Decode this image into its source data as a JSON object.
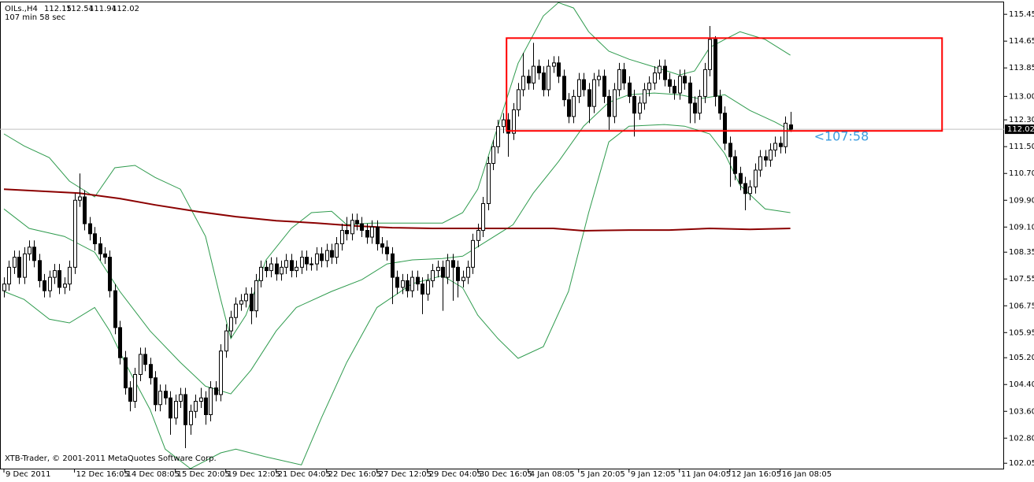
{
  "chart_data": {
    "type": "candlestick",
    "symbol": "OILs.,H4",
    "timer": "107 min 58 sec",
    "timer_label": "<107:58",
    "copyright": "XTB-Trader, © 2001-2011 MetaQuotes Software Corp.",
    "candle_up_color": "#ffffff",
    "candle_down_color": "#000000",
    "price_line_color": "#c0c0c0",
    "timer_color": "#3c9ee0",
    "xlim": [
      0,
      198.4
    ],
    "ylim": [
      101.89,
      115.83
    ],
    "yticks": [
      115.45,
      114.65,
      113.85,
      {
        "value": 113.0,
        "label": "113.00"
      },
      {
        "value": 112.3,
        "label": "112.30"
      },
      {
        "value": 111.5,
        "label": "111.50"
      },
      {
        "value": 110.7,
        "label": "110.70"
      },
      {
        "value": 109.9,
        "label": "109.90"
      },
      {
        "value": 109.1,
        "label": "109.10"
      },
      108.35,
      107.55,
      106.75,
      105.95,
      {
        "value": 105.2,
        "label": "105.20"
      },
      {
        "value": 104.4,
        "label": "104.40"
      },
      {
        "value": 103.6,
        "label": "103.60"
      },
      {
        "value": 102.8,
        "label": "102.80"
      },
      102.05
    ],
    "xticks": [
      {
        "value": 0,
        "label": "9 Dec 2011"
      },
      {
        "value": 14,
        "label": "12 Dec 16:05"
      },
      {
        "value": 24,
        "label": "14 Dec 08:05"
      },
      {
        "value": 34,
        "label": "15 Dec 20:05"
      },
      {
        "value": 44,
        "label": "19 Dec 12:05"
      },
      {
        "value": 54,
        "label": "21 Dec 04:05"
      },
      {
        "value": 64,
        "label": "22 Dec 16:05"
      },
      {
        "value": 74,
        "label": "27 Dec 12:05"
      },
      {
        "value": 84,
        "label": "29 Dec 04:05"
      },
      {
        "value": 94,
        "label": "30 Dec 16:05"
      },
      {
        "value": 104,
        "label": "4 Jan 08:05"
      },
      {
        "value": 114,
        "label": "5 Jan 20:05"
      },
      {
        "value": 124,
        "label": "9 Jan 12:05"
      },
      {
        "value": 134,
        "label": "11 Jan 04:05"
      },
      {
        "value": 144,
        "label": "12 Jan 16:05"
      },
      {
        "value": 154,
        "label": "16 Jan 08:05"
      }
    ],
    "candles": [
      [
        107.2,
        107.6,
        107.0,
        107.4
      ],
      [
        107.4,
        108.1,
        107.2,
        107.9
      ],
      [
        107.9,
        108.4,
        107.7,
        108.2
      ],
      [
        108.2,
        108.4,
        107.4,
        107.6
      ],
      [
        107.6,
        108.5,
        107.4,
        108.3
      ],
      [
        108.3,
        108.7,
        108.1,
        108.5
      ],
      [
        108.5,
        108.7,
        107.9,
        108.1
      ],
      [
        108.1,
        108.3,
        107.3,
        107.5
      ],
      [
        107.5,
        107.7,
        107.0,
        107.2
      ],
      [
        107.2,
        107.8,
        107.0,
        107.6
      ],
      [
        107.6,
        108.0,
        107.4,
        107.8
      ],
      [
        107.8,
        108.0,
        107.1,
        107.3
      ],
      [
        107.3,
        107.6,
        107.1,
        107.4
      ],
      [
        107.4,
        108.1,
        107.2,
        107.9
      ],
      [
        107.9,
        110.1,
        107.7,
        109.9
      ],
      [
        109.9,
        110.7,
        109.7,
        110.0
      ],
      [
        110.0,
        110.2,
        109.0,
        109.2
      ],
      [
        109.2,
        109.4,
        108.7,
        108.9
      ],
      [
        108.9,
        109.1,
        108.4,
        108.6
      ],
      [
        108.6,
        108.8,
        108.1,
        108.3
      ],
      [
        108.3,
        108.5,
        108.0,
        108.2
      ],
      [
        108.2,
        108.4,
        107.0,
        107.2
      ],
      [
        107.2,
        107.4,
        105.9,
        106.1
      ],
      [
        106.1,
        106.3,
        105.0,
        105.2
      ],
      [
        105.2,
        105.4,
        104.1,
        104.3
      ],
      [
        104.3,
        104.5,
        103.6,
        103.9
      ],
      [
        103.9,
        104.9,
        103.7,
        104.7
      ],
      [
        104.7,
        105.5,
        104.5,
        105.3
      ],
      [
        105.3,
        105.5,
        104.8,
        105.0
      ],
      [
        105.0,
        105.2,
        104.4,
        104.6
      ],
      [
        104.6,
        104.8,
        103.6,
        103.8
      ],
      [
        103.8,
        104.4,
        103.6,
        104.2
      ],
      [
        104.2,
        104.4,
        103.8,
        104.0
      ],
      [
        104.0,
        104.2,
        102.9,
        103.4
      ],
      [
        103.4,
        104.1,
        103.2,
        103.9
      ],
      [
        103.9,
        104.3,
        103.7,
        104.1
      ],
      [
        104.1,
        104.3,
        102.5,
        103.2
      ],
      [
        103.2,
        103.8,
        102.9,
        103.6
      ],
      [
        103.6,
        104.1,
        103.4,
        103.9
      ],
      [
        103.9,
        104.3,
        103.7,
        104.0
      ],
      [
        104.0,
        104.2,
        103.2,
        103.5
      ],
      [
        103.5,
        104.5,
        103.3,
        104.3
      ],
      [
        104.3,
        104.5,
        103.9,
        104.1
      ],
      [
        104.1,
        105.6,
        103.9,
        105.4
      ],
      [
        105.4,
        106.2,
        105.2,
        106.0
      ],
      [
        106.0,
        106.6,
        105.8,
        106.4
      ],
      [
        106.4,
        107.0,
        106.2,
        106.8
      ],
      [
        106.8,
        107.1,
        106.6,
        106.9
      ],
      [
        106.9,
        107.3,
        106.7,
        107.1
      ],
      [
        107.1,
        107.3,
        106.2,
        106.6
      ],
      [
        106.6,
        107.7,
        106.4,
        107.5
      ],
      [
        107.5,
        108.1,
        107.3,
        107.9
      ],
      [
        107.9,
        108.1,
        107.6,
        107.8
      ],
      [
        107.8,
        108.2,
        107.6,
        108.0
      ],
      [
        108.0,
        108.2,
        107.5,
        107.7
      ],
      [
        107.7,
        108.1,
        107.5,
        107.9
      ],
      [
        107.9,
        108.3,
        107.7,
        108.1
      ],
      [
        108.1,
        108.3,
        107.6,
        107.8
      ],
      [
        107.8,
        108.1,
        107.6,
        107.9
      ],
      [
        107.9,
        108.4,
        107.7,
        108.2
      ],
      [
        108.2,
        108.4,
        107.8,
        108.0
      ],
      [
        108.0,
        108.2,
        107.8,
        108.0
      ],
      [
        108.0,
        108.5,
        107.8,
        108.3
      ],
      [
        108.3,
        108.5,
        107.9,
        108.1
      ],
      [
        108.1,
        108.6,
        107.9,
        108.4
      ],
      [
        108.4,
        108.6,
        108.0,
        108.2
      ],
      [
        108.2,
        108.8,
        108.0,
        108.6
      ],
      [
        108.6,
        109.2,
        108.4,
        109.0
      ],
      [
        109.0,
        109.4,
        108.7,
        108.9
      ],
      [
        108.9,
        109.5,
        108.7,
        109.3
      ],
      [
        109.3,
        109.5,
        109.0,
        109.2
      ],
      [
        109.2,
        109.4,
        108.8,
        109.0
      ],
      [
        109.0,
        109.2,
        108.6,
        108.8
      ],
      [
        108.8,
        109.3,
        108.6,
        109.1
      ],
      [
        109.1,
        109.3,
        108.4,
        108.6
      ],
      [
        108.6,
        108.8,
        108.3,
        108.5
      ],
      [
        108.5,
        108.7,
        108.1,
        108.3
      ],
      [
        108.3,
        108.5,
        106.8,
        107.6
      ],
      [
        107.6,
        107.8,
        107.1,
        107.3
      ],
      [
        107.3,
        107.7,
        107.1,
        107.5
      ],
      [
        107.5,
        107.7,
        107.0,
        107.2
      ],
      [
        107.2,
        107.8,
        107.0,
        107.6
      ],
      [
        107.6,
        107.8,
        107.2,
        107.4
      ],
      [
        107.4,
        107.6,
        106.5,
        107.1
      ],
      [
        107.1,
        107.7,
        106.9,
        107.5
      ],
      [
        107.5,
        108.0,
        107.3,
        107.8
      ],
      [
        107.8,
        108.1,
        107.6,
        107.9
      ],
      [
        107.9,
        108.1,
        106.6,
        107.6
      ],
      [
        107.6,
        108.3,
        107.4,
        108.1
      ],
      [
        108.1,
        108.3,
        106.9,
        107.9
      ],
      [
        107.9,
        108.1,
        107.0,
        107.5
      ],
      [
        107.5,
        107.8,
        107.3,
        107.6
      ],
      [
        107.6,
        108.1,
        107.4,
        107.9
      ],
      [
        107.9,
        108.9,
        107.7,
        108.7
      ],
      [
        108.7,
        109.2,
        108.5,
        109.0
      ],
      [
        109.0,
        110.0,
        108.8,
        109.8
      ],
      [
        109.8,
        111.2,
        109.6,
        111.0
      ],
      [
        111.0,
        111.7,
        110.8,
        111.5
      ],
      [
        111.5,
        112.3,
        111.3,
        112.1
      ],
      [
        112.1,
        112.5,
        111.9,
        112.3
      ],
      [
        112.3,
        112.5,
        111.2,
        111.9
      ],
      [
        111.9,
        112.8,
        111.7,
        112.6
      ],
      [
        112.6,
        113.4,
        112.4,
        113.2
      ],
      [
        113.2,
        114.3,
        113.0,
        113.6
      ],
      [
        113.6,
        113.8,
        113.2,
        113.4
      ],
      [
        113.4,
        114.6,
        113.2,
        113.9
      ],
      [
        113.9,
        114.1,
        113.5,
        113.7
      ],
      [
        113.7,
        113.9,
        113.0,
        113.2
      ],
      [
        113.2,
        114.1,
        113.0,
        113.9
      ],
      [
        113.9,
        114.2,
        113.7,
        114.0
      ],
      [
        114.0,
        114.2,
        113.4,
        113.6
      ],
      [
        113.6,
        113.8,
        112.7,
        112.9
      ],
      [
        112.9,
        113.1,
        112.2,
        112.4
      ],
      [
        112.4,
        113.2,
        112.2,
        113.0
      ],
      [
        113.0,
        113.7,
        112.8,
        113.5
      ],
      [
        113.5,
        113.7,
        113.0,
        113.2
      ],
      [
        113.2,
        113.4,
        112.2,
        112.7
      ],
      [
        112.7,
        113.7,
        112.5,
        113.5
      ],
      [
        113.5,
        113.8,
        113.3,
        113.6
      ],
      [
        113.6,
        113.8,
        112.8,
        113.0
      ],
      [
        113.0,
        113.2,
        112.0,
        112.4
      ],
      [
        112.4,
        113.4,
        112.2,
        113.2
      ],
      [
        113.2,
        114.0,
        113.0,
        113.8
      ],
      [
        113.8,
        114.0,
        113.2,
        113.4
      ],
      [
        113.4,
        113.6,
        112.8,
        113.0
      ],
      [
        113.0,
        113.2,
        111.8,
        112.5
      ],
      [
        112.5,
        113.0,
        112.3,
        112.8
      ],
      [
        112.8,
        113.4,
        112.6,
        113.2
      ],
      [
        113.2,
        113.6,
        113.0,
        113.4
      ],
      [
        113.4,
        113.9,
        113.2,
        113.7
      ],
      [
        113.7,
        114.1,
        113.5,
        113.9
      ],
      [
        113.9,
        114.1,
        113.3,
        113.5
      ],
      [
        113.5,
        113.7,
        113.1,
        113.3
      ],
      [
        113.3,
        113.5,
        112.9,
        113.1
      ],
      [
        113.1,
        113.8,
        112.9,
        113.6
      ],
      [
        113.6,
        113.8,
        113.2,
        113.4
      ],
      [
        113.4,
        113.6,
        112.2,
        112.8
      ],
      [
        112.8,
        113.0,
        112.2,
        112.5
      ],
      [
        112.5,
        113.2,
        112.3,
        113.0
      ],
      [
        113.0,
        114.0,
        112.8,
        113.8
      ],
      [
        113.8,
        115.1,
        113.6,
        114.7
      ],
      [
        114.7,
        114.8,
        112.7,
        113.0
      ],
      [
        113.0,
        113.2,
        112.3,
        112.5
      ],
      [
        112.5,
        112.7,
        111.4,
        111.6
      ],
      [
        111.6,
        111.8,
        110.3,
        111.2
      ],
      [
        111.2,
        111.4,
        110.5,
        110.7
      ],
      [
        110.7,
        110.9,
        110.2,
        110.4
      ],
      [
        110.4,
        110.6,
        109.6,
        110.1
      ],
      [
        110.1,
        110.5,
        109.9,
        110.3
      ],
      [
        110.3,
        111.0,
        110.1,
        110.8
      ],
      [
        110.8,
        111.4,
        110.6,
        111.2
      ],
      [
        111.2,
        111.4,
        110.9,
        111.1
      ],
      [
        111.1,
        111.6,
        110.9,
        111.4
      ],
      [
        111.4,
        111.8,
        111.2,
        111.6
      ],
      [
        111.6,
        111.8,
        111.3,
        111.5
      ],
      [
        111.5,
        112.4,
        111.3,
        112.2
      ],
      [
        112.15,
        112.54,
        111.94,
        112.02
      ]
    ],
    "lines": [
      {
        "color": "#2f9b4e",
        "x": [
          0,
          4,
          9,
          13,
          18,
          22,
          26,
          30,
          35,
          40,
          43,
          45,
          48,
          52,
          57,
          61,
          65,
          68,
          73,
          79,
          87,
          91,
          94,
          98,
          102,
          107,
          110,
          113,
          116,
          120,
          124,
          129,
          134,
          137,
          140,
          143,
          146,
          151,
          156
        ],
        "values": [
          111.88,
          111.52,
          111.17,
          110.47,
          110.0,
          110.87,
          110.94,
          110.58,
          110.23,
          108.82,
          106.94,
          105.77,
          106.47,
          108.12,
          109.06,
          109.53,
          109.57,
          109.17,
          109.22,
          109.22,
          109.22,
          109.53,
          110.23,
          112.11,
          113.99,
          115.4,
          115.8,
          115.64,
          114.93,
          114.35,
          114.11,
          113.88,
          113.64,
          113.76,
          114.46,
          114.7,
          114.93,
          114.7,
          114.23
        ]
      },
      {
        "color": "#2f9b4e",
        "x": [
          0,
          5,
          12,
          18,
          23,
          29,
          35,
          40,
          45,
          49,
          54,
          58,
          65,
          71,
          76,
          81,
          87,
          91,
          96,
          101,
          105,
          110,
          115,
          120,
          124,
          129,
          134,
          138,
          143,
          148,
          153,
          156
        ],
        "values": [
          109.64,
          109.06,
          108.82,
          108.35,
          107.18,
          106.0,
          105.06,
          104.35,
          104.12,
          104.83,
          106.0,
          106.7,
          107.18,
          107.53,
          108.0,
          108.12,
          108.16,
          108.23,
          108.7,
          109.17,
          110.11,
          111.05,
          112.11,
          112.82,
          113.05,
          113.1,
          113.05,
          112.93,
          113.05,
          112.58,
          112.23,
          111.99
        ]
      },
      {
        "color": "#2f9b4e",
        "x": [
          0,
          4,
          9,
          13,
          18,
          21,
          24,
          29,
          32,
          37,
          43,
          46,
          52,
          59,
          63,
          68,
          74,
          81,
          87,
          91,
          94,
          98,
          102,
          107,
          112,
          116,
          120,
          124,
          131,
          135,
          140,
          143,
          146,
          151,
          156
        ],
        "values": [
          107.18,
          106.94,
          106.35,
          106.24,
          106.7,
          106.0,
          105.06,
          103.65,
          102.47,
          101.89,
          102.36,
          102.47,
          102.24,
          102.0,
          103.41,
          105.06,
          106.7,
          107.41,
          107.65,
          107.29,
          106.47,
          105.77,
          105.18,
          105.53,
          107.18,
          109.53,
          111.64,
          112.11,
          112.16,
          112.11,
          111.88,
          111.29,
          110.35,
          109.64,
          109.53
        ]
      },
      {
        "color": "#8b0000",
        "x": [
          0,
          15,
          23,
          30,
          38,
          46,
          54,
          62,
          70,
          77,
          85,
          93,
          101,
          109,
          115,
          124,
          132,
          140,
          148,
          156
        ],
        "values": [
          110.23,
          110.11,
          109.95,
          109.76,
          109.57,
          109.41,
          109.29,
          109.22,
          109.13,
          109.08,
          109.06,
          109.06,
          109.06,
          109.06,
          108.99,
          109.01,
          109.01,
          109.06,
          109.03,
          109.06
        ]
      }
    ],
    "rectangle": {
      "color": "#ff0000",
      "x": [
        99.7,
        186.1
      ],
      "y": [
        111.97,
        114.74
      ]
    }
  }
}
